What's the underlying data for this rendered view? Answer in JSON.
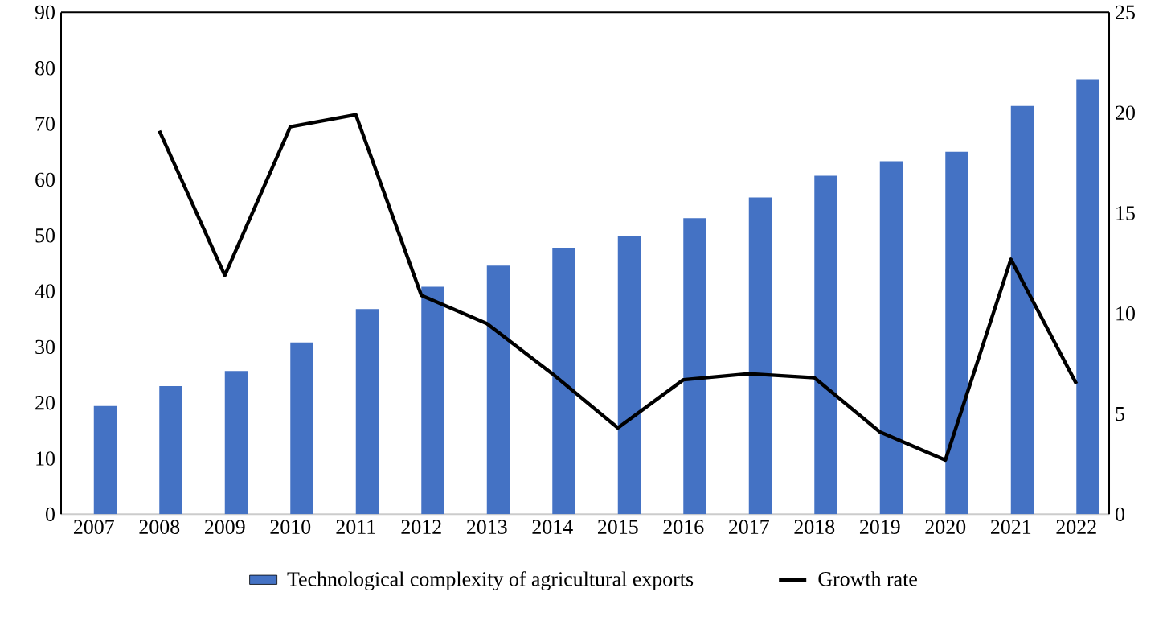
{
  "chart_data": {
    "type": "bar",
    "categories": [
      "2007",
      "2008",
      "2009",
      "2010",
      "2011",
      "2012",
      "2013",
      "2014",
      "2015",
      "2016",
      "2017",
      "2018",
      "2019",
      "2020",
      "2021",
      "2022"
    ],
    "series": [
      {
        "name": "Technological complexity of agricultural exports",
        "color": "#4472c4",
        "values": [
          19.4,
          23.0,
          25.7,
          30.8,
          36.8,
          40.8,
          44.6,
          47.8,
          49.9,
          53.1,
          56.8,
          60.7,
          63.3,
          65.0,
          73.2,
          78.0
        ]
      },
      {
        "name": "Growth rate",
        "type": "line",
        "axis": "y2",
        "color": "#000000",
        "values": [
          null,
          19.1,
          11.9,
          19.3,
          19.9,
          10.9,
          9.5,
          7.0,
          4.3,
          6.7,
          7.0,
          6.8,
          4.1,
          2.7,
          12.7,
          6.5
        ]
      }
    ],
    "ylim": [
      0,
      90
    ],
    "yticks": [
      0,
      10,
      20,
      30,
      40,
      50,
      60,
      70,
      80,
      90
    ],
    "y2lim": [
      0,
      25
    ],
    "y2ticks": [
      0,
      5,
      10,
      15,
      20,
      25
    ],
    "legend": "bottom",
    "grid": false
  }
}
